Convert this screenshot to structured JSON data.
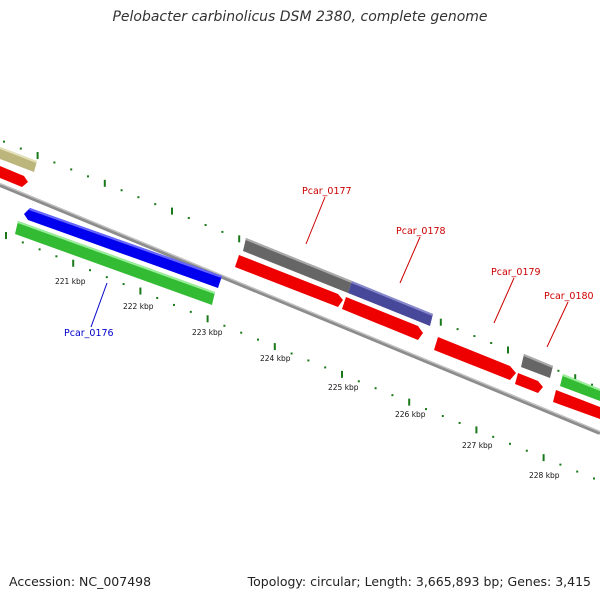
{
  "title": "Pelobacter carbinolicus DSM 2380, complete genome",
  "footer": {
    "accession": "Accession: NC_007498",
    "topology": "Topology: circular; Length: 3,665,893 bp; Genes: 3,415"
  },
  "colors": {
    "forward_cds": "#ff0000",
    "reverse_cds": "#0000ff",
    "gray_feature": "#707070",
    "purple_feature": "#4a4a9c",
    "green_feature": "#44cc44",
    "tan_feature": "#bcb67c",
    "backbone": "#999999",
    "ticks": "#1a7a1a",
    "label_forward": "#cc0000",
    "label_reverse": "#0000cc"
  },
  "scale_labels": [
    "221 kbp",
    "222 kbp",
    "223 kbp",
    "224 kbp",
    "225 kbp",
    "226 kbp",
    "227 kbp",
    "228 kbp"
  ],
  "gene_labels": [
    {
      "id": "g176",
      "text": "Pcar_0176",
      "strand": "reverse"
    },
    {
      "id": "g177",
      "text": "Pcar_0177",
      "strand": "forward"
    },
    {
      "id": "g178",
      "text": "Pcar_0178",
      "strand": "forward"
    },
    {
      "id": "g179",
      "text": "Pcar_0179",
      "strand": "forward"
    },
    {
      "id": "g180",
      "text": "Pcar_0180",
      "strand": "forward"
    }
  ]
}
